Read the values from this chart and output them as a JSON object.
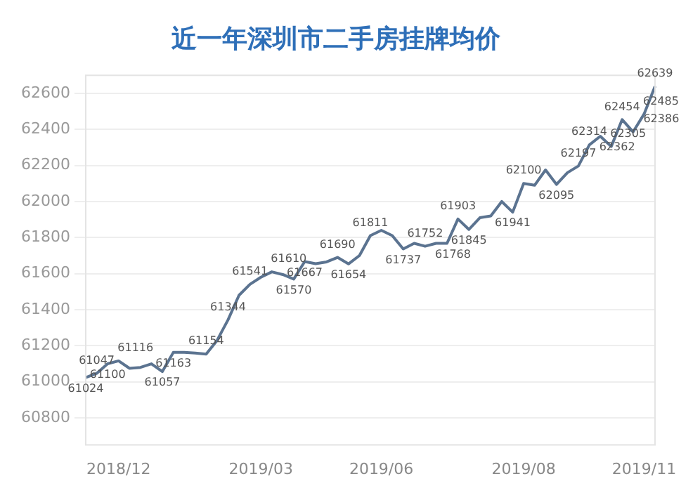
{
  "chart_data": {
    "type": "line",
    "title": "近一年深圳市二手房挂牌均价",
    "categories": [
      null,
      null,
      null,
      "2018/12",
      null,
      null,
      null,
      null,
      null,
      null,
      null,
      null,
      null,
      null,
      null,
      null,
      "2019/03",
      null,
      null,
      null,
      null,
      null,
      null,
      null,
      null,
      null,
      null,
      "2019/06",
      null,
      null,
      null,
      null,
      null,
      null,
      null,
      null,
      null,
      null,
      null,
      null,
      "2019/08",
      null,
      null,
      null,
      null,
      null,
      null,
      null,
      null,
      null,
      null,
      "2019/11",
      null
    ],
    "series": [
      {
        "color": "#5b7390",
        "values": [
          61024,
          61047,
          61100,
          61116,
          61075,
          61080,
          61100,
          61057,
          61163,
          61163,
          61160,
          61154,
          61230,
          61344,
          61480,
          61541,
          61580,
          61610,
          61595,
          61570,
          61667,
          61655,
          61665,
          61690,
          61654,
          61700,
          61811,
          61840,
          61811,
          61737,
          61768,
          61752,
          61768,
          61768,
          61903,
          61845,
          61910,
          61920,
          62000,
          61941,
          62100,
          62090,
          62175,
          62095,
          62160,
          62197,
          62314,
          62362,
          62305,
          62454,
          62386,
          62485,
          62639
        ],
        "value_labels": [
          "61024",
          "61047",
          "61100",
          "61116",
          null,
          null,
          null,
          "61057",
          "61163",
          null,
          null,
          "61154",
          null,
          "61344",
          null,
          "61541",
          null,
          "61610",
          null,
          "61570",
          "61667",
          null,
          null,
          "61690",
          "61654",
          null,
          "61811",
          null,
          null,
          "61737",
          null,
          "61752",
          "61768",
          null,
          "61903",
          "61845",
          null,
          null,
          null,
          "61941",
          "62100",
          null,
          null,
          "62095",
          null,
          "62197",
          "62314",
          "62362",
          "62305",
          "62454",
          "62386",
          "62485",
          "62639"
        ]
      }
    ],
    "ylim": [
      60650,
      62700
    ],
    "yticks": [
      60800,
      61000,
      61200,
      61400,
      61600,
      61800,
      62000,
      62200,
      62400,
      62600
    ],
    "grid": "y",
    "legend": false,
    "marker": "none",
    "line_style": "solid"
  }
}
